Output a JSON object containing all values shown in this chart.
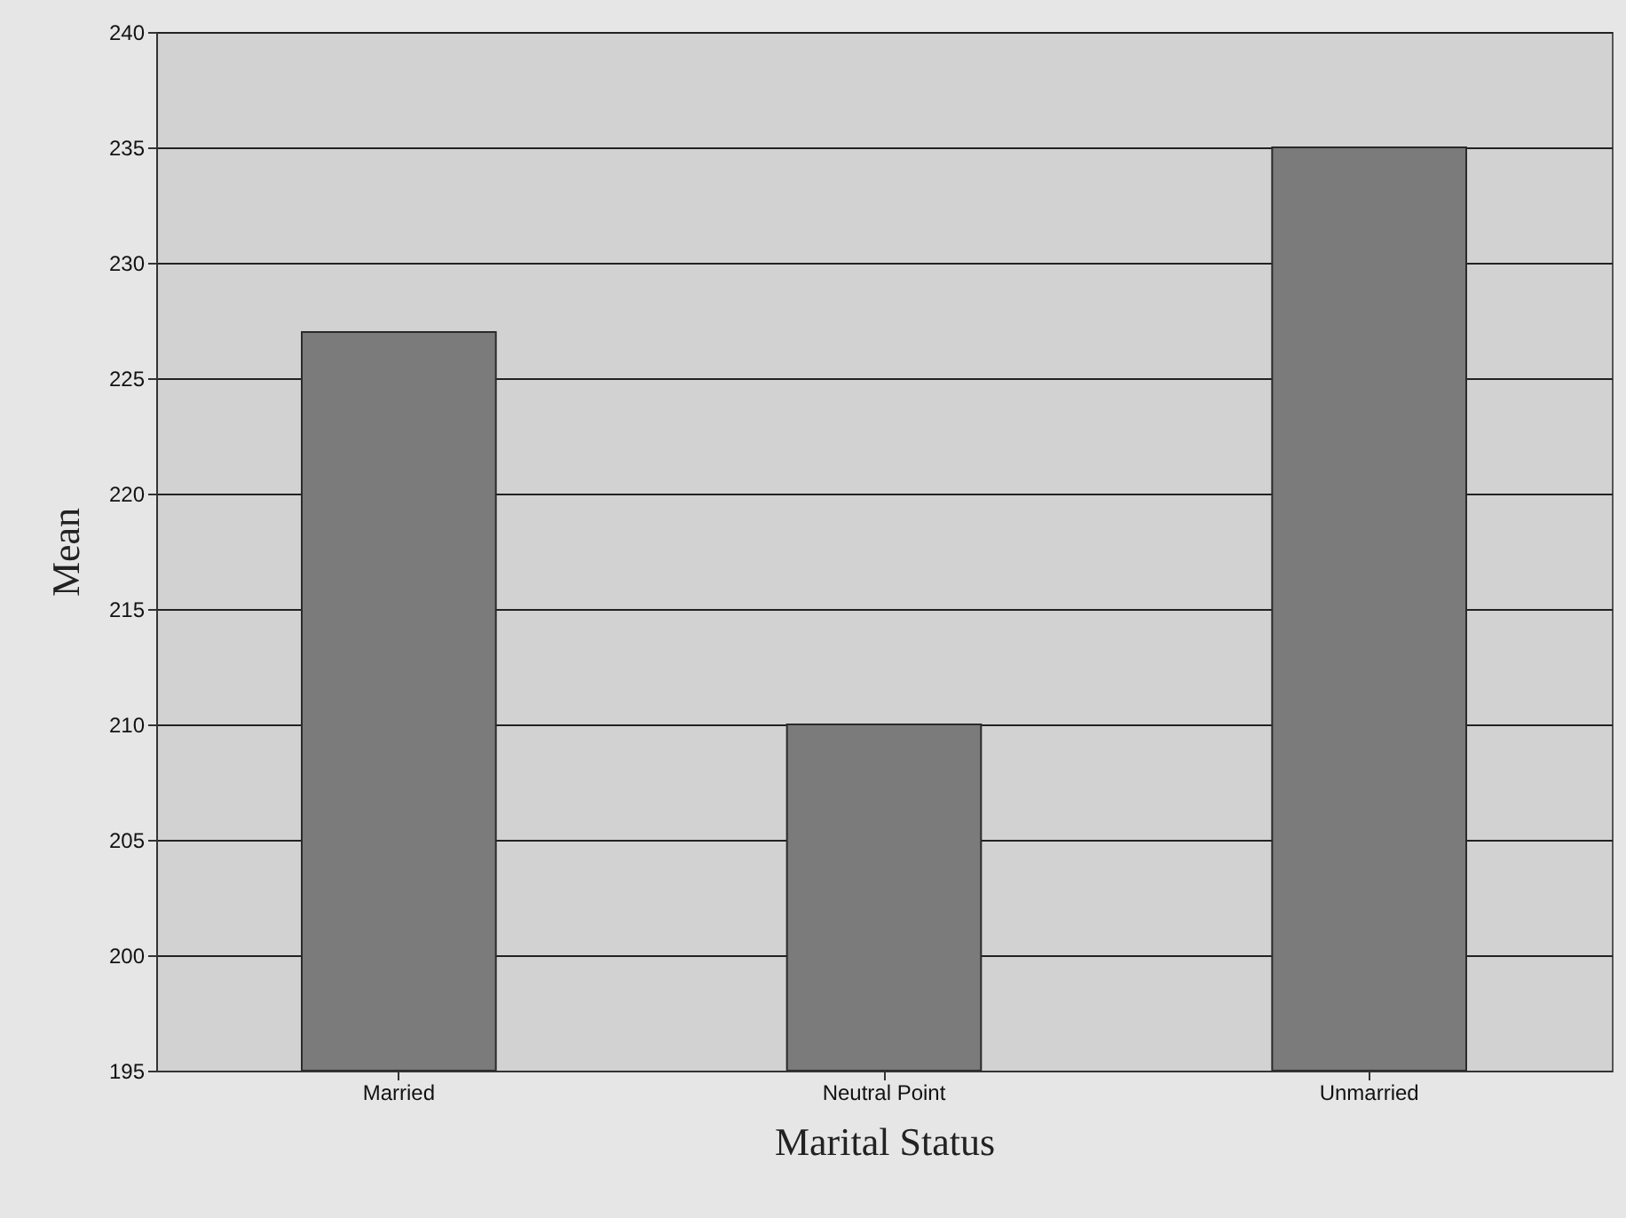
{
  "chart_data": {
    "type": "bar",
    "xlabel": "Marital Status",
    "ylabel": "Mean",
    "categories": [
      "Married",
      "Neutral Point",
      "Unmarried"
    ],
    "values": [
      227,
      210,
      235
    ],
    "color": "#7b7b7b",
    "ylim": [
      195,
      240
    ],
    "yticks": [
      195,
      200,
      205,
      210,
      215,
      220,
      225,
      230,
      235,
      240
    ],
    "grid": "y"
  }
}
